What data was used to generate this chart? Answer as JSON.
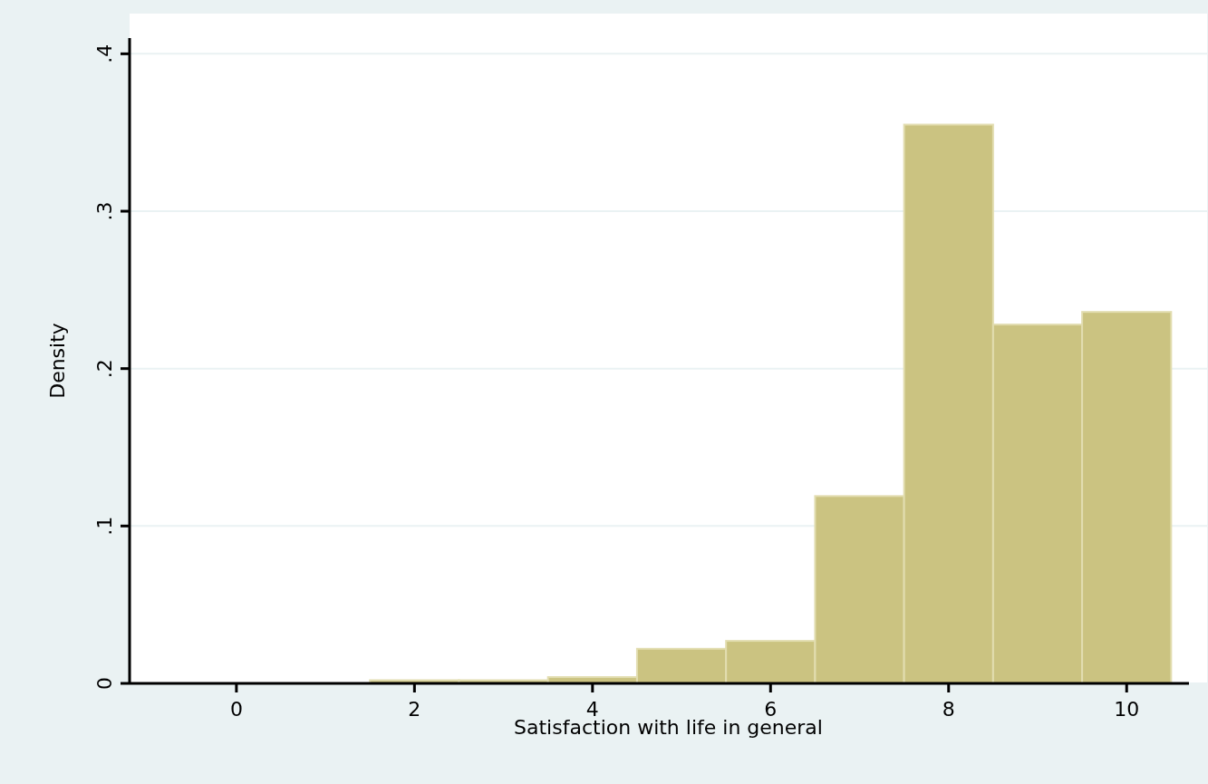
{
  "chart_data": {
    "type": "histogram",
    "xlabel": "Satisfaction with life in general",
    "ylabel": "Density",
    "bins": [
      1.5,
      2.5,
      3.5,
      4.5,
      5.5,
      6.5,
      7.5,
      8.5,
      9.5,
      10.5
    ],
    "values": [
      0.002,
      0.002,
      0.004,
      0.022,
      0.027,
      0.119,
      0.355,
      0.228,
      0.236
    ],
    "color": "#cbc381",
    "xlim": [
      -1.2,
      10.7
    ],
    "xticks": [
      0,
      2,
      4,
      6,
      8,
      10
    ],
    "ylim": [
      0,
      0.41
    ],
    "yticks": [
      {
        "value": 0,
        "label": "0"
      },
      {
        "value": 0.1,
        "label": ".1"
      },
      {
        "value": 0.2,
        "label": ".2"
      },
      {
        "value": 0.3,
        "label": ".3"
      },
      {
        "value": 0.4,
        "label": ".4"
      }
    ],
    "grid": "y"
  }
}
